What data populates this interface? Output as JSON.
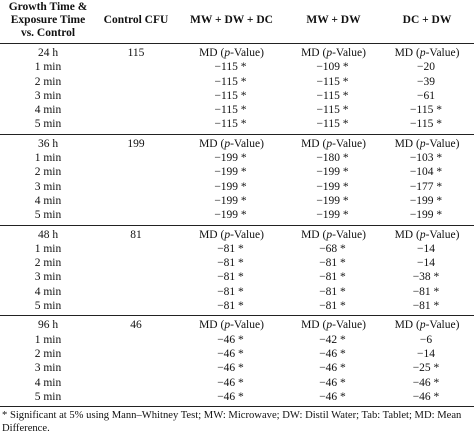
{
  "headers": {
    "col1_line1": "Growth Time &",
    "col1_line2": "Exposure Time",
    "col1_line3": "vs. Control",
    "col2": "Control CFU",
    "col3": "MW + DW + DC",
    "col4": "MW + DW",
    "col5": "DC + DW"
  },
  "md_label": {
    "prefix": "MD (",
    "p": "p",
    "suffix": "-Value)"
  },
  "groups": [
    {
      "growth_time": "24 h",
      "control_cfu": "115",
      "rows": [
        {
          "time": "1 min",
          "mw_dw_dc": "−115 *",
          "mw_dw": "−109 *",
          "dc_dw": "−20"
        },
        {
          "time": "2 min",
          "mw_dw_dc": "−115 *",
          "mw_dw": "−115 *",
          "dc_dw": "−39"
        },
        {
          "time": "3 min",
          "mw_dw_dc": "−115 *",
          "mw_dw": "−115 *",
          "dc_dw": "−61"
        },
        {
          "time": "4 min",
          "mw_dw_dc": "−115 *",
          "mw_dw": "−115 *",
          "dc_dw": "−115 *"
        },
        {
          "time": "5 min",
          "mw_dw_dc": "−115 *",
          "mw_dw": "−115 *",
          "dc_dw": "−115 *"
        }
      ]
    },
    {
      "growth_time": "36 h",
      "control_cfu": "199",
      "rows": [
        {
          "time": "1 min",
          "mw_dw_dc": "−199 *",
          "mw_dw": "−180 *",
          "dc_dw": "−103 *"
        },
        {
          "time": "2 min",
          "mw_dw_dc": "−199 *",
          "mw_dw": "−199 *",
          "dc_dw": "−104 *"
        },
        {
          "time": "3 min",
          "mw_dw_dc": "−199 *",
          "mw_dw": "−199 *",
          "dc_dw": "−177 *"
        },
        {
          "time": "4 min",
          "mw_dw_dc": "−199 *",
          "mw_dw": "−199 *",
          "dc_dw": "−199 *"
        },
        {
          "time": "5 min",
          "mw_dw_dc": "−199 *",
          "mw_dw": "−199 *",
          "dc_dw": "−199 *"
        }
      ]
    },
    {
      "growth_time": "48 h",
      "control_cfu": "81",
      "rows": [
        {
          "time": "1 min",
          "mw_dw_dc": "−81 *",
          "mw_dw": "−68 *",
          "dc_dw": "−14"
        },
        {
          "time": "2 min",
          "mw_dw_dc": "−81 *",
          "mw_dw": "−81 *",
          "dc_dw": "−14"
        },
        {
          "time": "3 min",
          "mw_dw_dc": "−81 *",
          "mw_dw": "−81 *",
          "dc_dw": "−38 *"
        },
        {
          "time": "4 min",
          "mw_dw_dc": "−81 *",
          "mw_dw": "−81 *",
          "dc_dw": "−81 *"
        },
        {
          "time": "5 min",
          "mw_dw_dc": "−81 *",
          "mw_dw": "−81 *",
          "dc_dw": "−81 *"
        }
      ]
    },
    {
      "growth_time": "96 h",
      "control_cfu": "46",
      "rows": [
        {
          "time": "1 min",
          "mw_dw_dc": "−46 *",
          "mw_dw": "−42 *",
          "dc_dw": "−6"
        },
        {
          "time": "2 min",
          "mw_dw_dc": "−46 *",
          "mw_dw": "−46 *",
          "dc_dw": "−14"
        },
        {
          "time": "3 min",
          "mw_dw_dc": "−46 *",
          "mw_dw": "−46 *",
          "dc_dw": "−25 *"
        },
        {
          "time": "4 min",
          "mw_dw_dc": "−46 *",
          "mw_dw": "−46 *",
          "dc_dw": "−46 *"
        },
        {
          "time": "5 min",
          "mw_dw_dc": "−46 *",
          "mw_dw": "−46 *",
          "dc_dw": "−46 *"
        }
      ]
    }
  ],
  "footnote": "* Significant at 5% using Mann–Whitney Test; MW: Microwave; DW: Distil Water; Tab: Tablet; MD: Mean Difference."
}
